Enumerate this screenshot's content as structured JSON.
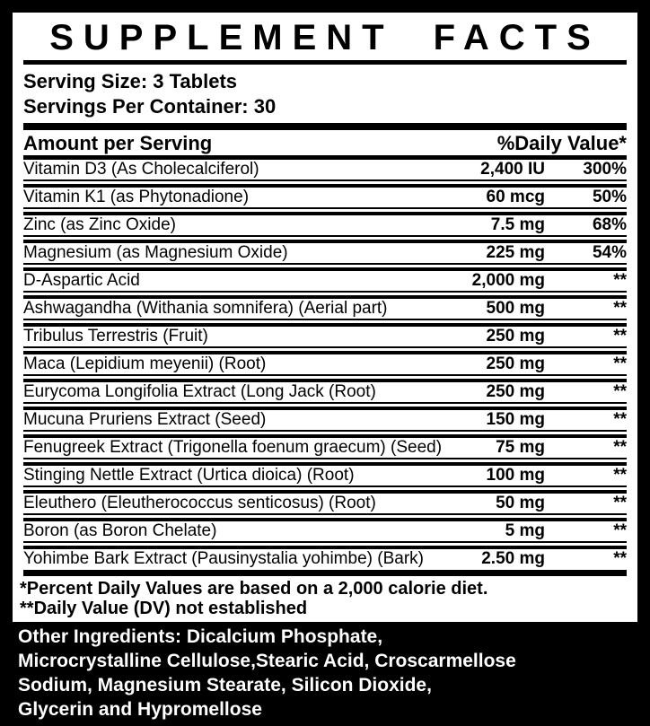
{
  "label": {
    "title": "SUPPLEMENT FACTS",
    "serving_size": "Serving Size: 3 Tablets",
    "servings_per_container": "Servings Per Container: 30",
    "header": {
      "amount": "Amount per Serving",
      "daily_value": "%Daily Value*"
    },
    "rows": [
      {
        "name": "Vitamin D3 (As Cholecalciferol)",
        "amount": "2,400 IU",
        "dv": "300%"
      },
      {
        "name": "Vitamin K1 (as Phytonadione)",
        "amount": "60 mcg",
        "dv": "50%"
      },
      {
        "name": "Zinc (as Zinc Oxide)",
        "amount": "7.5 mg",
        "dv": "68%"
      },
      {
        "name": "Magnesium (as Magnesium Oxide)",
        "amount": "225 mg",
        "dv": "54%"
      },
      {
        "name": "D-Aspartic Acid",
        "amount": "2,000 mg",
        "dv": "**"
      },
      {
        "name": "Ashwagandha (Withania somnifera) (Aerial part)",
        "amount": "500 mg",
        "dv": "**"
      },
      {
        "name": "Tribulus Terrestris (Fruit)",
        "amount": "250 mg",
        "dv": "**"
      },
      {
        "name": "Maca (Lepidium meyenii) (Root)",
        "amount": "250 mg",
        "dv": "**"
      },
      {
        "name": "Eurycoma Longifolia Extract (Long Jack (Root)",
        "amount": "250 mg",
        "dv": "**"
      },
      {
        "name": "Mucuna Pruriens Extract (Seed)",
        "amount": "150 mg",
        "dv": "**"
      },
      {
        "name": "Fenugreek Extract (Trigonella foenum graecum) (Seed)",
        "amount": "75 mg",
        "dv": "**"
      },
      {
        "name": "Stinging Nettle Extract (Urtica dioica) (Root)",
        "amount": "100 mg",
        "dv": "**"
      },
      {
        "name": "Eleuthero (Eleutherococcus senticosus) (Root)",
        "amount": "50 mg",
        "dv": "**"
      },
      {
        "name": "Boron (as Boron Chelate)",
        "amount": "5 mg",
        "dv": "**"
      },
      {
        "name": "Yohimbe Bark Extract (Pausinystalia yohimbe) (Bark)",
        "amount": "2.50 mg",
        "dv": "**"
      }
    ],
    "footnotes": [
      "*Percent Daily Values are based on a 2,000 calorie diet.",
      "**Daily Value (DV) not established"
    ]
  },
  "other_ingredients": {
    "text": "Other Ingredients: Dicalcium Phosphate,\nMicrocrystalline Cellulose,Stearic Acid, Croscarmellose\nSodium, Magnesium Stearate, Silicon Dioxide,\nGlycerin and Hypromellose"
  },
  "colors": {
    "background": "#000000",
    "panel_background": "#ffffff",
    "text": "#000000",
    "inverse_text": "#ffffff"
  }
}
